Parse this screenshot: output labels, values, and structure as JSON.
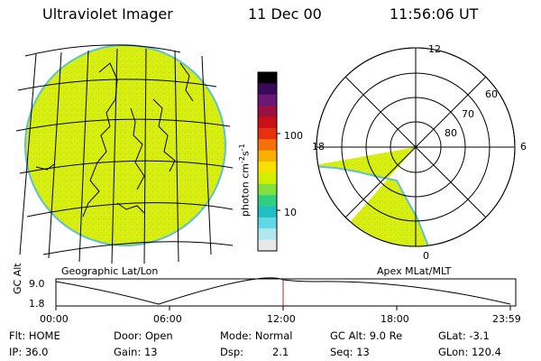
{
  "header": {
    "title": "Ultraviolet Imager",
    "date": "11 Dec 00",
    "time": "11:56:06 UT"
  },
  "colorbar": {
    "unit_label": "photon cm",
    "unit_exp1": "-2",
    "unit_s": "s",
    "unit_exp2": "-1",
    "tick_high": "100",
    "tick_low": "10",
    "colors": [
      "#000000",
      "#3a0a5a",
      "#6a1878",
      "#9a1040",
      "#c81018",
      "#e83010",
      "#f47008",
      "#f8b000",
      "#f8e000",
      "#d0f000",
      "#80e040",
      "#30d080",
      "#20c0c0",
      "#60d8e8",
      "#b0e8f0",
      "#e8e8e8"
    ]
  },
  "geo_panel": {
    "label": "Geographic Lat/Lon",
    "fill_color": "#d8ee10"
  },
  "apex_panel": {
    "label": "Apex MLat/MLT",
    "mlt_labels": [
      "12",
      "18",
      "6",
      "0"
    ],
    "mlat_labels": [
      "60",
      "70",
      "80"
    ]
  },
  "altitude_plot": {
    "axis_label": "GC Alt",
    "y_ticks": [
      "9.0",
      "1.8"
    ],
    "x_ticks": [
      "00:00",
      "06:00",
      "12:00",
      "18:00",
      "23:59"
    ],
    "marker_time": "11:56",
    "marker_color": "#d02020"
  },
  "status": {
    "flt": "Flt: HOME",
    "door": "Door: Open",
    "mode": "Mode: Normal",
    "gc_alt": "GC Alt: 9.0 Re",
    "glat": "GLat:  -3.1",
    "ip": "IP: 36.0",
    "gain": "Gain: 13",
    "dsp_label": "Dsp:",
    "dsp_value": "2.1",
    "seq": "Seq: 13",
    "glon": "GLon: 120.4"
  }
}
